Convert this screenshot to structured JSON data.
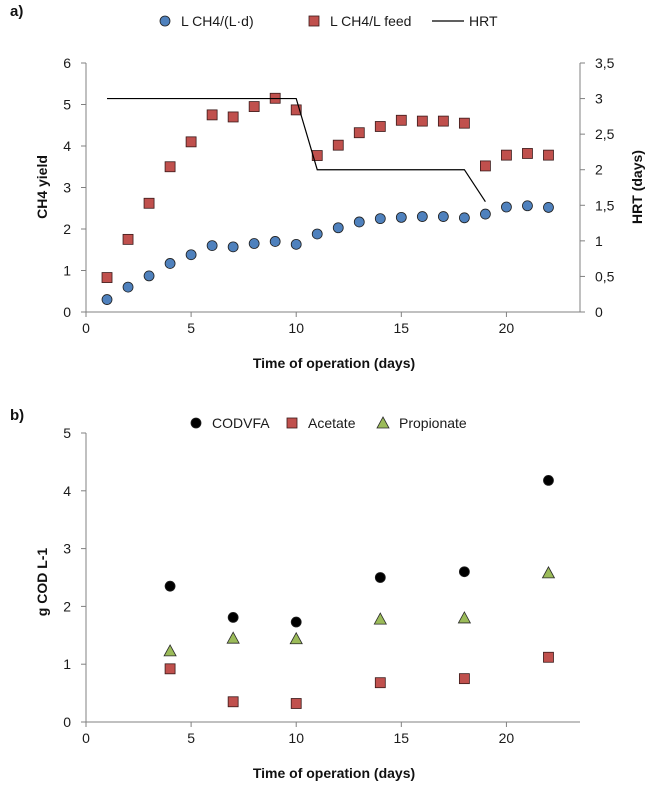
{
  "chart_data": [
    {
      "panel_label": "a)",
      "type": "scatter",
      "xlabel": "Time of operation (days)",
      "ylabel": "CH4 yield",
      "ylabel2": "HRT (days)",
      "xlim": [
        0,
        23.5
      ],
      "xticks": [
        "0",
        "5",
        "10",
        "15",
        "20"
      ],
      "ylim": [
        0,
        6
      ],
      "yticks": [
        "0",
        "1",
        "2",
        "3",
        "4",
        "5",
        "6"
      ],
      "y2lim": [
        0,
        3.5
      ],
      "y2ticks": [
        "0",
        "0,5",
        "1",
        "1,5",
        "2",
        "2,5",
        "3",
        "3,5"
      ],
      "grid": false,
      "legend_position": "top",
      "series": [
        {
          "name": "L CH4/(L·d)",
          "marker": "circle",
          "color": "#4f81bd",
          "x": [
            1,
            2,
            3,
            4,
            5,
            6,
            7,
            8,
            9,
            10,
            11,
            12,
            13,
            14,
            15,
            16,
            17,
            18,
            19,
            20,
            21,
            22
          ],
          "y": [
            0.3,
            0.6,
            0.87,
            1.17,
            1.38,
            1.6,
            1.57,
            1.65,
            1.7,
            1.63,
            1.88,
            2.03,
            2.17,
            2.25,
            2.28,
            2.3,
            2.3,
            2.27,
            2.36,
            2.53,
            2.56,
            2.52
          ]
        },
        {
          "name": "L CH4/L feed",
          "marker": "square",
          "color": "#c0504d",
          "x": [
            1,
            2,
            3,
            4,
            5,
            6,
            7,
            8,
            9,
            10,
            11,
            12,
            13,
            14,
            15,
            16,
            17,
            18,
            19,
            20,
            21,
            22
          ],
          "y": [
            0.83,
            1.75,
            2.62,
            3.5,
            4.1,
            4.75,
            4.7,
            4.95,
            5.15,
            4.87,
            3.77,
            4.02,
            4.32,
            4.47,
            4.62,
            4.6,
            4.6,
            4.55,
            3.52,
            3.78,
            3.82,
            3.78
          ]
        },
        {
          "name": "HRT",
          "marker": "line",
          "axis": "right",
          "color": "#000000",
          "x": [
            1,
            10,
            11,
            18,
            19
          ],
          "y": [
            3,
            3,
            2,
            2,
            1.55
          ]
        }
      ]
    },
    {
      "panel_label": "b)",
      "type": "scatter",
      "xlabel": "Time of operation (days)",
      "ylabel": "g COD L-1",
      "xlim": [
        0,
        23.5
      ],
      "xticks": [
        "0",
        "5",
        "10",
        "15",
        "20"
      ],
      "ylim": [
        0,
        5
      ],
      "yticks": [
        "0",
        "1",
        "2",
        "3",
        "4",
        "5"
      ],
      "grid": false,
      "legend_position": "top",
      "series": [
        {
          "name": "CODVFA",
          "marker": "circle",
          "color": "#000000",
          "x": [
            4,
            7,
            10,
            14,
            18,
            22
          ],
          "y": [
            2.35,
            1.81,
            1.73,
            2.5,
            2.6,
            4.18
          ]
        },
        {
          "name": "Acetate",
          "marker": "square",
          "color": "#c0504d",
          "x": [
            4,
            7,
            10,
            14,
            18,
            22
          ],
          "y": [
            0.92,
            0.35,
            0.32,
            0.68,
            0.75,
            1.12
          ]
        },
        {
          "name": "Propionate",
          "marker": "triangle",
          "color": "#9bbb59",
          "x": [
            4,
            7,
            10,
            14,
            18,
            22
          ],
          "y": [
            1.23,
            1.45,
            1.44,
            1.78,
            1.8,
            2.58
          ]
        }
      ]
    }
  ]
}
